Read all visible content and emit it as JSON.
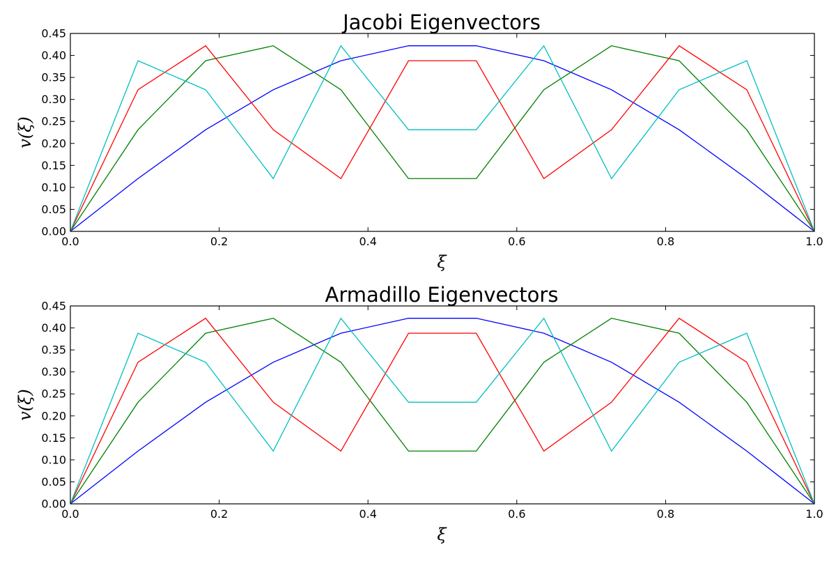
{
  "chart_data": [
    {
      "type": "line",
      "title": "Jacobi Eigenvectors",
      "xlabel": "ξ",
      "ylabel": "v(ξ)",
      "xlim": [
        0.0,
        1.0
      ],
      "ylim": [
        0.0,
        0.45
      ],
      "xticks": [
        "0.0",
        "0.2",
        "0.4",
        "0.6",
        "0.8",
        "1.0"
      ],
      "yticks": [
        "0.00",
        "0.05",
        "0.10",
        "0.15",
        "0.20",
        "0.25",
        "0.30",
        "0.35",
        "0.40",
        "0.45"
      ],
      "grid": false,
      "x": [
        0,
        0.0909,
        0.1818,
        0.2727,
        0.3636,
        0.4545,
        0.5455,
        0.6364,
        0.7273,
        0.8182,
        0.9091,
        1.0
      ],
      "series": [
        {
          "color": "#0000ff",
          "values": [
            0,
            0.12,
            0.231,
            0.322,
            0.388,
            0.422,
            0.422,
            0.388,
            0.322,
            0.231,
            0.12,
            0
          ]
        },
        {
          "color": "#008000",
          "values": [
            0,
            0.231,
            0.388,
            0.422,
            0.322,
            0.12,
            0.12,
            0.322,
            0.422,
            0.388,
            0.231,
            0
          ]
        },
        {
          "color": "#ff0000",
          "values": [
            0,
            0.322,
            0.422,
            0.231,
            0.12,
            0.388,
            0.388,
            0.12,
            0.231,
            0.422,
            0.322,
            0
          ]
        },
        {
          "color": "#00bfbf",
          "values": [
            0,
            0.388,
            0.322,
            0.12,
            0.422,
            0.231,
            0.231,
            0.422,
            0.12,
            0.322,
            0.388,
            0
          ]
        }
      ]
    },
    {
      "type": "line",
      "title": "Armadillo Eigenvectors",
      "xlabel": "ξ",
      "ylabel": "v(ξ)",
      "xlim": [
        0.0,
        1.0
      ],
      "ylim": [
        0.0,
        0.45
      ],
      "xticks": [
        "0.0",
        "0.2",
        "0.4",
        "0.6",
        "0.8",
        "1.0"
      ],
      "yticks": [
        "0.00",
        "0.05",
        "0.10",
        "0.15",
        "0.20",
        "0.25",
        "0.30",
        "0.35",
        "0.40",
        "0.45"
      ],
      "grid": false,
      "x": [
        0,
        0.0909,
        0.1818,
        0.2727,
        0.3636,
        0.4545,
        0.5455,
        0.6364,
        0.7273,
        0.8182,
        0.9091,
        1.0
      ],
      "series": [
        {
          "color": "#0000ff",
          "values": [
            0,
            0.12,
            0.231,
            0.322,
            0.388,
            0.422,
            0.422,
            0.388,
            0.322,
            0.231,
            0.12,
            0
          ]
        },
        {
          "color": "#008000",
          "values": [
            0,
            0.231,
            0.388,
            0.422,
            0.322,
            0.12,
            0.12,
            0.322,
            0.422,
            0.388,
            0.231,
            0
          ]
        },
        {
          "color": "#ff0000",
          "values": [
            0,
            0.322,
            0.422,
            0.231,
            0.12,
            0.388,
            0.388,
            0.12,
            0.231,
            0.422,
            0.322,
            0
          ]
        },
        {
          "color": "#00bfbf",
          "values": [
            0,
            0.388,
            0.322,
            0.12,
            0.422,
            0.231,
            0.231,
            0.422,
            0.12,
            0.322,
            0.388,
            0
          ]
        }
      ]
    }
  ]
}
